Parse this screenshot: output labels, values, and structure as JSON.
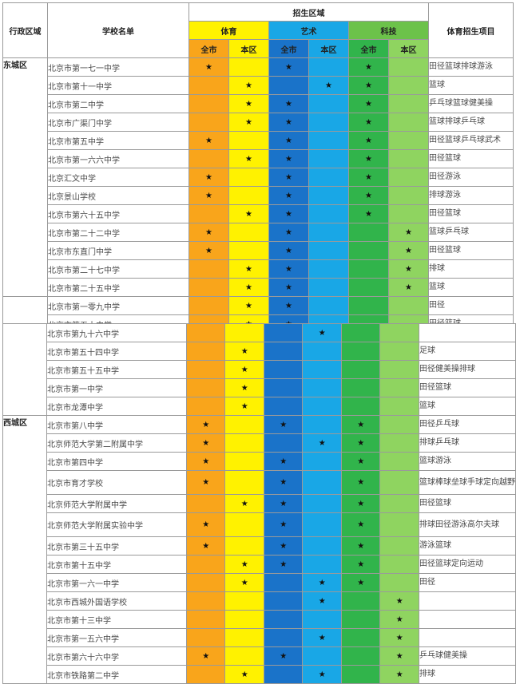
{
  "headers": {
    "district": "行政区域",
    "school": "学校名单",
    "region": "招生区域",
    "sports": "体育",
    "arts": "艺术",
    "tech": "科技",
    "city": "全市",
    "local": "本区",
    "project": "体育招生项目"
  },
  "star": "★",
  "table1": {
    "district1": "东城区",
    "district2": "",
    "rows": [
      {
        "school": "北京市第一七一中学",
        "project": "田径篮球排球游泳",
        "marks": [
          1,
          0,
          1,
          0,
          1,
          0
        ]
      },
      {
        "school": "北京市第十一中学",
        "project": "篮球",
        "marks": [
          0,
          1,
          0,
          1,
          1,
          0
        ]
      },
      {
        "school": "北京市第二中学",
        "project": "乒乓球篮球健美操",
        "marks": [
          0,
          1,
          1,
          0,
          1,
          0
        ]
      },
      {
        "school": "北京市广渠门中学",
        "project": "篮球排球乒乓球",
        "marks": [
          0,
          1,
          1,
          0,
          1,
          0
        ]
      },
      {
        "school": "北京市第五中学",
        "project": "田径篮球乒乓球武术",
        "marks": [
          1,
          0,
          1,
          0,
          1,
          0
        ]
      },
      {
        "school": "北京市第一六六中学",
        "project": "田径篮球",
        "marks": [
          0,
          1,
          1,
          0,
          1,
          0
        ]
      },
      {
        "school": "北京汇文中学",
        "project": "田径游泳",
        "marks": [
          1,
          0,
          1,
          0,
          1,
          0
        ]
      },
      {
        "school": "北京景山学校",
        "project": "排球游泳",
        "marks": [
          1,
          0,
          1,
          0,
          1,
          0
        ]
      },
      {
        "school": "北京市第六十五中学",
        "project": "田径篮球",
        "marks": [
          0,
          1,
          1,
          0,
          1,
          0
        ]
      },
      {
        "school": "北京市第二十二中学",
        "project": "篮球乒乓球",
        "marks": [
          1,
          0,
          1,
          0,
          0,
          1
        ]
      },
      {
        "school": "北京市东直门中学",
        "project": "田径篮球",
        "marks": [
          1,
          0,
          1,
          0,
          0,
          1
        ]
      },
      {
        "school": "北京市第二十七中学",
        "project": "排球",
        "marks": [
          0,
          1,
          1,
          0,
          0,
          1
        ]
      },
      {
        "school": "北京市第二十五中学",
        "project": "篮球",
        "marks": [
          0,
          1,
          1,
          0,
          0,
          1
        ]
      },
      {
        "school": "北京市第一零九中学",
        "project": "田径",
        "marks": [
          0,
          1,
          1,
          0,
          0,
          0
        ]
      },
      {
        "school": "北京市第五十中学",
        "project": "田径篮球",
        "marks": [
          0,
          1,
          1,
          0,
          0,
          0
        ]
      }
    ]
  },
  "table2": {
    "district1": "",
    "district2": "西城区",
    "rows": [
      {
        "school": "北京市第九十六中学",
        "project": "",
        "marks": [
          0,
          0,
          0,
          1,
          0,
          0
        ]
      },
      {
        "school": "北京市第五十四中学",
        "project": "足球",
        "marks": [
          0,
          1,
          0,
          0,
          0,
          0
        ]
      },
      {
        "school": "北京市第五十五中学",
        "project": "田径健美操排球",
        "marks": [
          0,
          1,
          0,
          0,
          0,
          0
        ]
      },
      {
        "school": "北京市第一中学",
        "project": "田径篮球",
        "marks": [
          0,
          1,
          0,
          0,
          0,
          0
        ]
      },
      {
        "school": "北京市龙潭中学",
        "project": "篮球",
        "marks": [
          0,
          1,
          0,
          0,
          0,
          0
        ]
      },
      {
        "school": "北京市第八中学",
        "project": "田径乒乓球",
        "marks": [
          1,
          0,
          1,
          0,
          1,
          0
        ]
      },
      {
        "school": "北京师范大学第二附属中学",
        "project": "排球乒乓球",
        "marks": [
          1,
          0,
          0,
          1,
          1,
          0
        ]
      },
      {
        "school": "北京市第四中学",
        "project": "篮球游泳",
        "marks": [
          1,
          0,
          1,
          0,
          1,
          0
        ]
      },
      {
        "school": "北京市育才学校",
        "project": "篮球棒球垒球手球定向越野",
        "marks": [
          1,
          0,
          1,
          0,
          1,
          0
        ]
      },
      {
        "school": "北京师范大学附属中学",
        "project": "田径篮球",
        "marks": [
          0,
          1,
          1,
          0,
          1,
          0
        ]
      },
      {
        "school": "北京师范大学附属实验中学",
        "project": "排球田径游泳高尔夫球",
        "marks": [
          1,
          0,
          1,
          0,
          1,
          0
        ]
      },
      {
        "school": "北京市第三十五中学",
        "project": "游泳篮球",
        "marks": [
          1,
          0,
          1,
          0,
          1,
          0
        ]
      },
      {
        "school": "北京市第十五中学",
        "project": "田径篮球定向运动",
        "marks": [
          0,
          1,
          1,
          0,
          1,
          0
        ]
      },
      {
        "school": "北京市第一六一中学",
        "project": "田径",
        "marks": [
          0,
          1,
          0,
          1,
          1,
          0
        ]
      },
      {
        "school": "北京市西城外国语学校",
        "project": "",
        "marks": [
          0,
          0,
          0,
          1,
          0,
          1
        ]
      },
      {
        "school": "北京市第十三中学",
        "project": "",
        "marks": [
          0,
          0,
          0,
          0,
          0,
          1
        ]
      },
      {
        "school": "北京市第一五六中学",
        "project": "",
        "marks": [
          0,
          0,
          0,
          1,
          0,
          1
        ]
      },
      {
        "school": "北京市第六十六中学",
        "project": "乒乓球健美操",
        "marks": [
          1,
          0,
          1,
          0,
          0,
          1
        ]
      },
      {
        "school": "北京市铁路第二中学",
        "project": "排球",
        "marks": [
          0,
          1,
          0,
          1,
          0,
          1
        ]
      }
    ]
  }
}
